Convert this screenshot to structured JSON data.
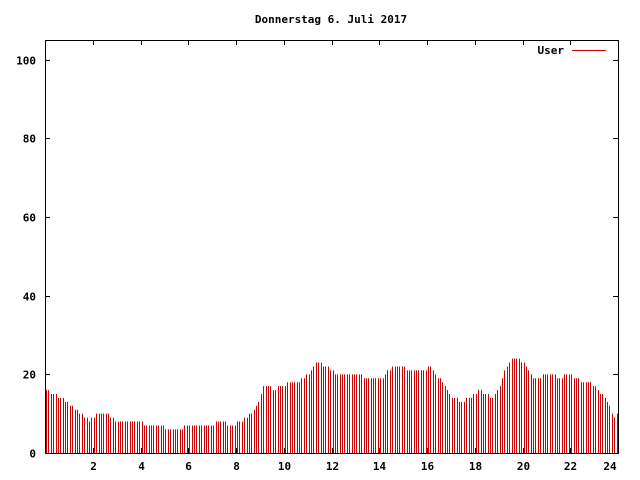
{
  "chart_data": {
    "type": "bar",
    "title": "Donnerstag 6. Juli 2017",
    "xlabel": "",
    "ylabel": "",
    "xlim": [
      0,
      24
    ],
    "ylim": [
      0,
      105
    ],
    "x_ticks": [
      2,
      4,
      6,
      8,
      10,
      12,
      14,
      16,
      18,
      20,
      22,
      24
    ],
    "y_ticks": [
      0,
      20,
      40,
      60,
      80,
      100
    ],
    "grid": false,
    "legend_position": "top-right",
    "colors": {
      "series": "#cc0000",
      "axis": "#000000",
      "background": "#ffffff"
    },
    "series": [
      {
        "name": "User",
        "step_hours": 0.1,
        "anchors": [
          [
            0,
            16
          ],
          [
            0.3,
            15
          ],
          [
            0.6,
            14
          ],
          [
            0.9,
            13
          ],
          [
            1.2,
            11
          ],
          [
            1.5,
            10
          ],
          [
            1.8,
            8
          ],
          [
            2.1,
            10
          ],
          [
            2.6,
            10
          ],
          [
            2.9,
            8
          ],
          [
            3.5,
            8
          ],
          [
            3.9,
            8
          ],
          [
            4.2,
            7
          ],
          [
            4.8,
            7
          ],
          [
            5.1,
            6
          ],
          [
            5.6,
            6
          ],
          [
            6.0,
            7
          ],
          [
            7.0,
            7
          ],
          [
            7.2,
            8
          ],
          [
            7.8,
            7
          ],
          [
            8.2,
            8
          ],
          [
            8.6,
            10
          ],
          [
            8.9,
            13
          ],
          [
            9.1,
            17
          ],
          [
            9.3,
            17
          ],
          [
            9.5,
            16
          ],
          [
            9.9,
            17
          ],
          [
            10.2,
            18
          ],
          [
            10.6,
            18
          ],
          [
            11.0,
            20
          ],
          [
            11.3,
            23
          ],
          [
            11.7,
            22
          ],
          [
            12.0,
            21
          ],
          [
            12.2,
            20
          ],
          [
            13.0,
            20
          ],
          [
            13.5,
            19
          ],
          [
            14.1,
            19
          ],
          [
            14.3,
            21
          ],
          [
            14.6,
            22
          ],
          [
            14.9,
            22
          ],
          [
            15.1,
            21
          ],
          [
            15.8,
            21
          ],
          [
            16.1,
            22
          ],
          [
            16.3,
            20
          ],
          [
            16.6,
            18
          ],
          [
            16.9,
            15
          ],
          [
            17.3,
            13
          ],
          [
            17.8,
            14
          ],
          [
            18.1,
            16
          ],
          [
            18.3,
            15
          ],
          [
            18.7,
            14
          ],
          [
            19.0,
            17
          ],
          [
            19.2,
            21
          ],
          [
            19.5,
            24
          ],
          [
            19.8,
            24
          ],
          [
            20.1,
            22
          ],
          [
            20.3,
            20
          ],
          [
            20.5,
            19
          ],
          [
            21.1,
            20
          ],
          [
            21.6,
            19
          ],
          [
            21.8,
            20
          ],
          [
            22.2,
            19
          ],
          [
            22.5,
            18
          ],
          [
            22.8,
            18
          ],
          [
            23.1,
            16
          ],
          [
            23.4,
            14
          ],
          [
            23.6,
            12
          ],
          [
            23.8,
            9
          ],
          [
            23.95,
            10
          ]
        ]
      }
    ]
  }
}
